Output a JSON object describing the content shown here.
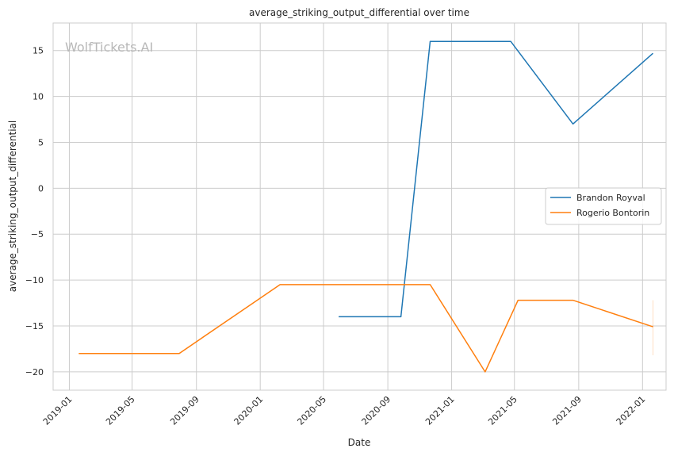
{
  "chart_data": {
    "type": "line",
    "title": "average_striking_output_differential over time",
    "xlabel": "Date",
    "ylabel": "average_striking_output_differential",
    "watermark": "WolfTickets.AI",
    "x_ticks": [
      "2019-01",
      "2019-05",
      "2019-09",
      "2020-01",
      "2020-05",
      "2020-09",
      "2021-01",
      "2021-05",
      "2021-09",
      "2022-01"
    ],
    "y_ticks": [
      15,
      10,
      5,
      0,
      -5,
      -10,
      -15,
      -20
    ],
    "y_tick_labels": [
      "15",
      "10",
      "5",
      "0",
      "−5",
      "−10",
      "−15",
      "−20"
    ],
    "ylim": [
      -22,
      18
    ],
    "xlim": [
      "2018-12-01",
      "2022-02-15"
    ],
    "grid": true,
    "legend_position": "center-right",
    "series": [
      {
        "name": "Brandon Royval",
        "color": "#1f77b4",
        "points": [
          {
            "date": "2020-05-30",
            "value": -14.0
          },
          {
            "date": "2020-09-26",
            "value": -14.0
          },
          {
            "date": "2020-11-21",
            "value": 16.0
          },
          {
            "date": "2021-04-24",
            "value": 16.0
          },
          {
            "date": "2021-08-21",
            "value": 7.0
          },
          {
            "date": "2022-01-21",
            "value": 14.7
          }
        ]
      },
      {
        "name": "Rogerio Bontorin",
        "color": "#ff7f0e",
        "points": [
          {
            "date": "2019-01-19",
            "value": -18.0
          },
          {
            "date": "2019-07-30",
            "value": -18.0
          },
          {
            "date": "2020-02-08",
            "value": -10.5
          },
          {
            "date": "2020-11-21",
            "value": -10.5
          },
          {
            "date": "2021-03-06",
            "value": -20.0
          },
          {
            "date": "2021-05-08",
            "value": -12.2
          },
          {
            "date": "2021-08-21",
            "value": -12.2
          },
          {
            "date": "2022-01-21",
            "value": -15.1
          }
        ]
      }
    ]
  }
}
